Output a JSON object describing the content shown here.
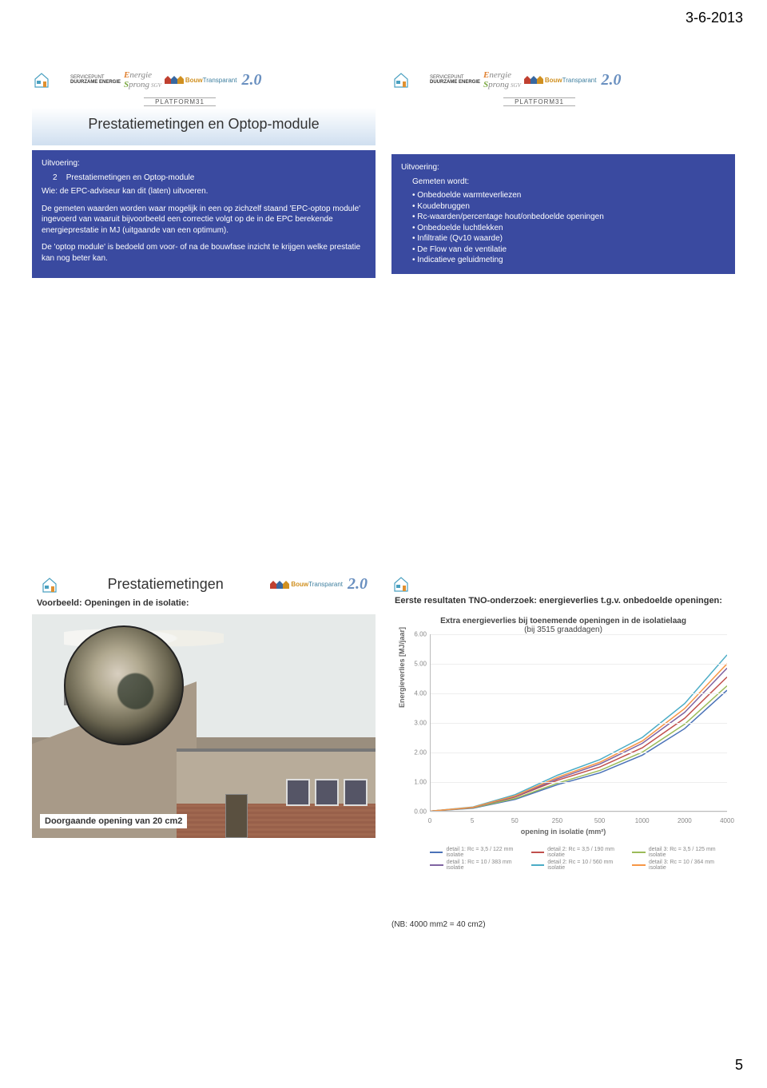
{
  "meta": {
    "date": "3-6-2013",
    "page_number": "5"
  },
  "logos": {
    "servicepunt_line1": "SERVICEPUNT",
    "servicepunt_line2": "DUURZAME ENERGIE",
    "energie_sprong": "Energie Sprong",
    "sgv": "SGV",
    "bouw_b": "Bouw",
    "bouw_t": "Transparant",
    "twenty": "2.0",
    "platform": "PLATFORM31"
  },
  "q1": {
    "title": "Prestatiemetingen en Optop-module",
    "uitvoering_label": "Uitvoering:",
    "line_num": "2",
    "line_text": "Prestatiemetingen en Optop-module",
    "wie": "Wie: de EPC-adviseur kan dit (laten) uitvoeren.",
    "para1": "De gemeten waarden worden waar mogelijk in een op zichzelf staand 'EPC-optop module' ingevoerd van waaruit bijvoorbeeld een correctie volgt op de in de EPC berekende energieprestatie in MJ (uitgaande van een optimum).",
    "para2": "De 'optop module' is bedoeld om voor- of na de bouwfase inzicht te krijgen welke prestatie kan nog beter kan."
  },
  "q2": {
    "uitvoering_label": "Uitvoering:",
    "gemeten_label": "Gemeten wordt:",
    "bullets": [
      "Onbedoelde warmteverliezen",
      "Koudebruggen",
      "Rc-waarden/percentage hout/onbedoelde openingen",
      "Onbedoelde luchtlekken",
      "Infiltratie (Qv10 waarde)",
      "De Flow van de ventilatie",
      "Indicatieve geluidmeting"
    ]
  },
  "q3": {
    "title": "Prestatiemetingen",
    "subtitle": "Voorbeeld: Openingen in de isolatie:",
    "caption": "Doorgaande opening van 20 cm2"
  },
  "q4": {
    "title": "Eerste resultaten TNO-onderzoek: energieverlies t.g.v. onbedoelde openingen:",
    "chart": {
      "type": "line",
      "title": "Extra energieverlies bij toenemende openingen in de isolatielaag",
      "subtitle": "(bij 3515 graaddagen)",
      "xlabel": "opening in isolatie (mm²)",
      "ylabel": "Energieverlies [MJ/jaar]",
      "xlim": [
        0,
        4000
      ],
      "ylim": [
        0,
        6.0
      ],
      "xticks": [
        0,
        5,
        50,
        250,
        500,
        1000,
        2000,
        4000
      ],
      "yticks": [
        0.0,
        1.0,
        2.0,
        3.0,
        4.0,
        5.0,
        6.0
      ],
      "ytick_labels": [
        "0.00",
        "1.00",
        "2.00",
        "3.00",
        "4.00",
        "5.00",
        "6.00"
      ],
      "background_color": "#ffffff",
      "grid_color": "#eeeeee",
      "title_fontsize": 10,
      "label_fontsize": 9,
      "tick_fontsize": 8,
      "series": [
        {
          "name": "detail 1: Rc = 3,5 / 122 mm isolatie",
          "color": "#4a72b8",
          "width": 1.5,
          "values": [
            0.0,
            0.1,
            0.4,
            0.9,
            1.3,
            1.9,
            2.8,
            4.1
          ]
        },
        {
          "name": "detail 2: Rc = 3,5 / 190 mm isolatie",
          "color": "#c0504d",
          "width": 1.5,
          "values": [
            0.0,
            0.12,
            0.48,
            1.05,
            1.5,
            2.15,
            3.15,
            4.55
          ]
        },
        {
          "name": "detail 3: Rc = 3,5 / 125 mm isolatie",
          "color": "#9bbb59",
          "width": 1.5,
          "values": [
            0.0,
            0.11,
            0.43,
            0.95,
            1.38,
            2.0,
            2.95,
            4.25
          ]
        },
        {
          "name": "detail 1: Rc = 10 / 383 mm isolatie",
          "color": "#8064a2",
          "width": 1.5,
          "values": [
            0.0,
            0.12,
            0.5,
            1.1,
            1.6,
            2.3,
            3.35,
            4.85
          ]
        },
        {
          "name": "detail 2: Rc = 10 / 560 mm isolatie",
          "color": "#4bacc6",
          "width": 1.5,
          "values": [
            0.0,
            0.14,
            0.56,
            1.22,
            1.75,
            2.5,
            3.65,
            5.3
          ]
        },
        {
          "name": "detail 3: Rc = 10 / 364 mm isolatie",
          "color": "#f79646",
          "width": 1.5,
          "values": [
            0.0,
            0.13,
            0.52,
            1.15,
            1.66,
            2.38,
            3.48,
            5.0
          ]
        }
      ]
    },
    "note": "(NB: 4000 mm2 = 40 cm2)"
  }
}
